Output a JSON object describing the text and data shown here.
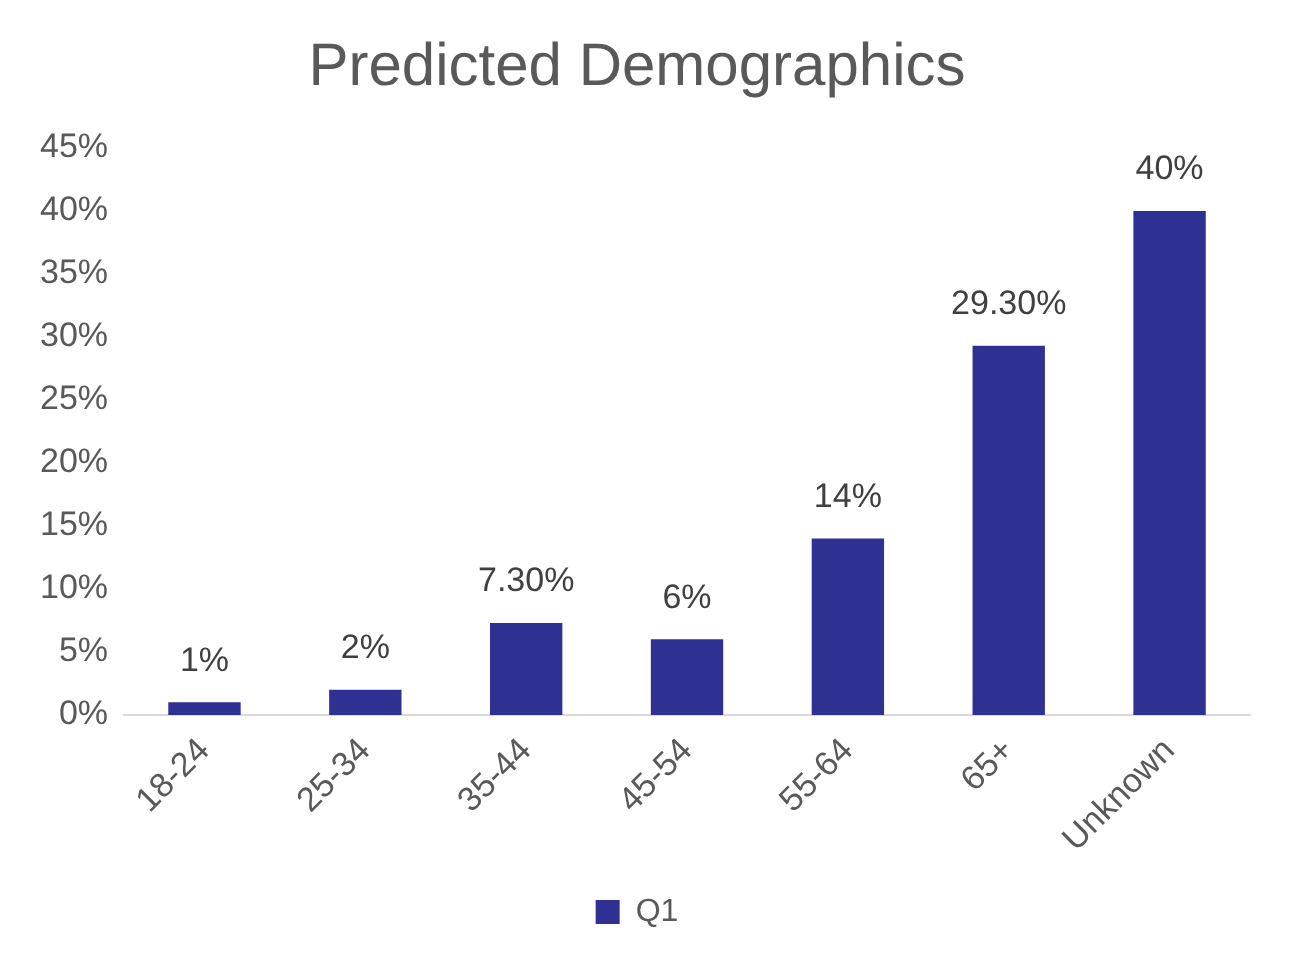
{
  "chart_data": {
    "type": "bar",
    "title": "Predicted Demographics",
    "categories": [
      "18-24",
      "25-34",
      "35-44",
      "45-54",
      "55-64",
      "65+",
      "Unknown"
    ],
    "series": [
      {
        "name": "Q1",
        "color": "#2e3192",
        "values": [
          1,
          2,
          7.3,
          6,
          14,
          29.3,
          40
        ],
        "value_labels": [
          "1%",
          "2%",
          "7.30%",
          "6%",
          "14%",
          "29.30%",
          "40%"
        ]
      }
    ],
    "ylim": [
      0,
      45
    ],
    "yticks": [
      {
        "value": 0,
        "label": "0%"
      },
      {
        "value": 5,
        "label": "5%"
      },
      {
        "value": 10,
        "label": "10%"
      },
      {
        "value": 15,
        "label": "15%"
      },
      {
        "value": 20,
        "label": "20%"
      },
      {
        "value": 25,
        "label": "25%"
      },
      {
        "value": 30,
        "label": "30%"
      },
      {
        "value": 35,
        "label": "35%"
      },
      {
        "value": 40,
        "label": "40%"
      },
      {
        "value": 45,
        "label": "45%"
      }
    ],
    "grid": false,
    "legend": "bottom"
  }
}
